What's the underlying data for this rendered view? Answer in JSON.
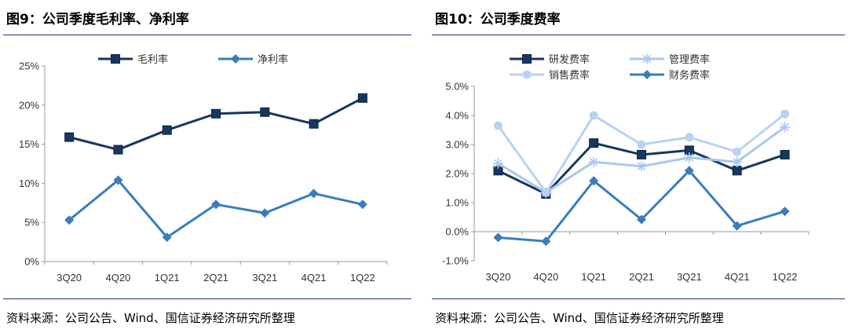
{
  "left": {
    "title": "图9：公司季度毛利率、净利率",
    "source": "资料来源：公司公告、Wind、国信证券经济研究所整理"
  },
  "right": {
    "title": "图10：公司季度费率",
    "source": "资料来源：公司公告、Wind、国信证券经济研究所整理"
  },
  "colors": {
    "dark_navy": "#17375e",
    "mid_blue": "#3a7dbf",
    "light_blue": "#a9c8ec",
    "rule": "#1f3864"
  },
  "chart_data": [
    {
      "type": "line",
      "categories": [
        "3Q20",
        "4Q20",
        "1Q21",
        "2Q21",
        "3Q21",
        "4Q21",
        "1Q22"
      ],
      "ylim": [
        0,
        25
      ],
      "yticks": [
        "0%",
        "5%",
        "10%",
        "15%",
        "20%",
        "25%"
      ],
      "legend_position": "top",
      "series": [
        {
          "name": "毛利率",
          "values": [
            15.9,
            14.3,
            16.8,
            18.9,
            19.1,
            17.6,
            20.9
          ],
          "color": "#17375e",
          "marker": "square"
        },
        {
          "name": "净利率",
          "values": [
            5.3,
            10.4,
            3.1,
            7.3,
            6.2,
            8.7,
            7.3
          ],
          "color": "#3a7dbf",
          "marker": "diamond"
        }
      ]
    },
    {
      "type": "line",
      "categories": [
        "3Q20",
        "4Q20",
        "1Q21",
        "2Q21",
        "3Q21",
        "4Q21",
        "1Q22"
      ],
      "ylim": [
        -1,
        5
      ],
      "yticks": [
        "-1.0%",
        "0.0%",
        "1.0%",
        "2.0%",
        "3.0%",
        "4.0%",
        "5.0%"
      ],
      "legend_position": "top",
      "series": [
        {
          "name": "研发费率",
          "values": [
            2.1,
            1.3,
            3.05,
            2.65,
            2.8,
            2.1,
            2.65
          ],
          "color": "#17375e",
          "marker": "square"
        },
        {
          "name": "管理费率",
          "values": [
            2.35,
            1.35,
            2.4,
            2.25,
            2.55,
            2.4,
            3.6
          ],
          "color": "#a9c8ec",
          "marker": "star"
        },
        {
          "name": "销售费率",
          "values": [
            3.65,
            1.35,
            4.0,
            3.0,
            3.25,
            2.75,
            4.05
          ],
          "color": "#b8d3f0",
          "marker": "circle"
        },
        {
          "name": "财务费率",
          "values": [
            -0.2,
            -0.33,
            1.75,
            0.42,
            2.1,
            0.2,
            0.7
          ],
          "color": "#3a7dbf",
          "marker": "diamond"
        }
      ]
    }
  ]
}
